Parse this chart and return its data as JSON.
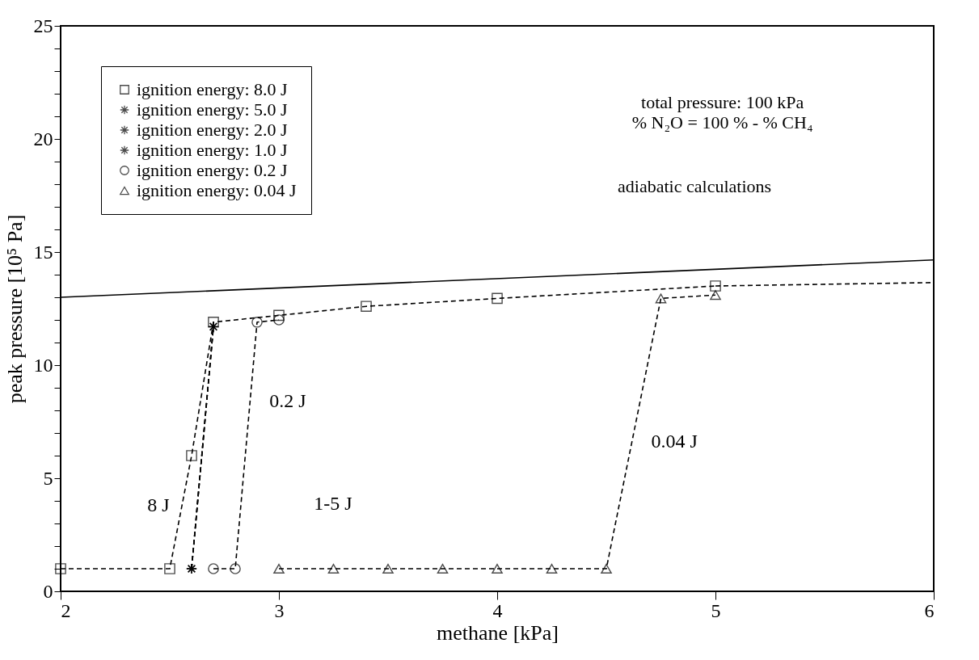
{
  "chart_data": {
    "type": "line",
    "xlabel": "methane [kPa]",
    "ylabel": "peak pressure [10⁵ Pa]",
    "xlim": [
      2,
      6
    ],
    "ylim": [
      0,
      25
    ],
    "xticks": [
      2,
      3,
      4,
      5,
      6
    ],
    "yticks": [
      0,
      {
        "value": 1,
        "label": null
      },
      {
        "value": 2,
        "label": null
      },
      {
        "value": 3,
        "label": null
      },
      {
        "value": 4,
        "label": null
      },
      5,
      {
        "value": 6,
        "label": null
      },
      {
        "value": 7,
        "label": null
      },
      {
        "value": 8,
        "label": null
      },
      {
        "value": 9,
        "label": null
      },
      10,
      {
        "value": 11,
        "label": null
      },
      {
        "value": 12,
        "label": null
      },
      {
        "value": 13,
        "label": null
      },
      {
        "value": 14,
        "label": null
      },
      15,
      {
        "value": 16,
        "label": null
      },
      {
        "value": 17,
        "label": null
      },
      {
        "value": 18,
        "label": null
      },
      {
        "value": 19,
        "label": null
      },
      20,
      {
        "value": 21,
        "label": null
      },
      {
        "value": 22,
        "label": null
      },
      {
        "value": 23,
        "label": null
      },
      {
        "value": 24,
        "label": null
      },
      25
    ],
    "grid": false,
    "legend": "top left",
    "series": [
      {
        "name": "ignition energy:   8.0 J",
        "color": "#000000",
        "marker": "square",
        "line_style": "dashed",
        "x": [
          2,
          2.5,
          2.6,
          2.7,
          3.0,
          3.4,
          4.0,
          5.0
        ],
        "values": [
          1,
          1,
          6.0,
          11.9,
          12.2,
          12.6,
          12.95,
          13.5
        ]
      },
      {
        "name": "ignition energy:   5.0 J",
        "color": "#000000",
        "marker": "cross",
        "line_style": "dashed",
        "x": [
          2.6,
          2.7
        ],
        "values": [
          1,
          11.7
        ]
      },
      {
        "name": "ignition energy:   2.0 J",
        "color": "#000000",
        "marker": "cross",
        "line_style": "dashed",
        "x": [
          2.6,
          2.7
        ],
        "values": [
          1,
          11.7
        ]
      },
      {
        "name": "ignition energy:   1.0 J",
        "color": "#000000",
        "marker": "cross",
        "line_style": "dashed",
        "x": [
          2.6,
          2.7
        ],
        "values": [
          1,
          11.7
        ]
      },
      {
        "name": "ignition energy:   0.2 J",
        "color": "#000000",
        "marker": "circle",
        "line_style": "dashed",
        "x": [
          2.7,
          2.8,
          2.9,
          3.0
        ],
        "values": [
          1,
          1,
          11.9,
          12.0
        ]
      },
      {
        "name": "ignition energy: 0.04 J",
        "color": "#000000",
        "marker": "triangle",
        "line_style": "dashed",
        "x": [
          3.0,
          3.25,
          3.5,
          3.75,
          4.0,
          4.25,
          4.5,
          4.75,
          5.0
        ],
        "values": [
          1,
          1,
          1,
          1,
          1,
          1,
          1,
          12.95,
          13.1
        ]
      },
      {
        "color": "#000000",
        "marker": "none",
        "line_style": "dashed",
        "x": [
          5.0,
          6.0
        ],
        "values": [
          13.5,
          13.65
        ]
      },
      {
        "color": "#000000",
        "marker": "none",
        "line_style": "solid",
        "x": [
          2.0,
          6.0
        ],
        "values": [
          13.0,
          14.65
        ]
      }
    ],
    "annotations": [
      "total pressure: 100 kPa",
      "% N₂O = 100 %  - % CH₄",
      "adiabatic calculations",
      "8 J",
      "1-5 J",
      "0.2 J",
      "0.04 J"
    ]
  }
}
